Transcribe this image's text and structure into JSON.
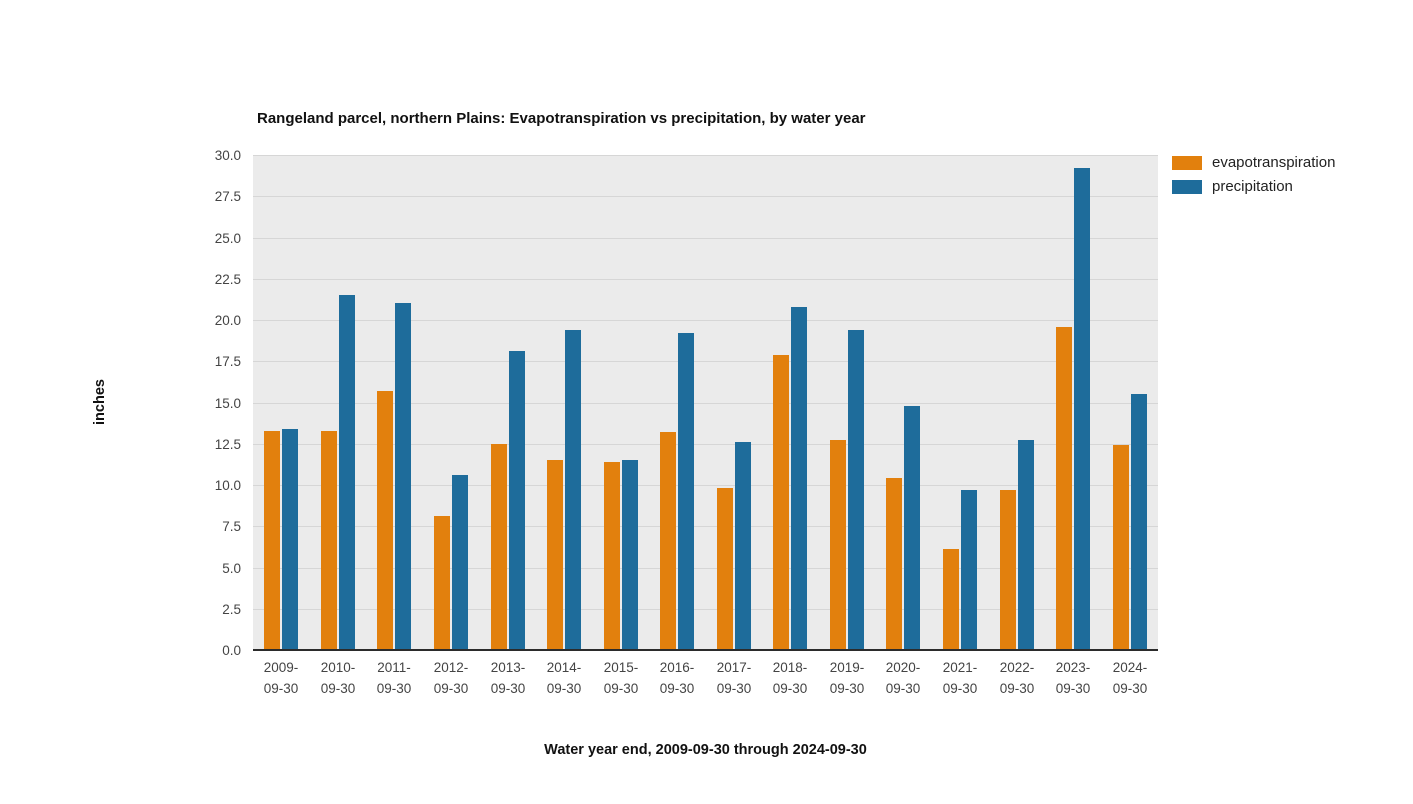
{
  "chart_data": {
    "type": "bar",
    "title": "Rangeland parcel, northern Plains: Evapotranspiration vs precipitation, by water year",
    "xlabel": "Water year end, 2009-09-30 through 2024-09-30",
    "ylabel": "inches",
    "ylim": [
      0,
      30
    ],
    "grid": true,
    "legend_position": "right-top-outside",
    "plot_background": "#EBEBEB",
    "gridline_color": "#D6D6D6",
    "axis_line_color": "#2b2b2b",
    "tick_label_color": "#444444",
    "yticks": [
      "0.0",
      "2.5",
      "5.0",
      "7.5",
      "10.0",
      "12.5",
      "15.0",
      "17.5",
      "20.0",
      "22.5",
      "25.0",
      "27.5",
      "30.0"
    ],
    "categories": [
      "2009-09-30",
      "2010-09-30",
      "2011-09-30",
      "2012-09-30",
      "2013-09-30",
      "2014-09-30",
      "2015-09-30",
      "2016-09-30",
      "2017-09-30",
      "2018-09-30",
      "2019-09-30",
      "2020-09-30",
      "2021-09-30",
      "2022-09-30",
      "2023-09-30",
      "2024-09-30"
    ],
    "series": [
      {
        "name": "evapotranspiration",
        "color": "#E2800D",
        "values": [
          13.3,
          13.3,
          15.7,
          8.1,
          12.5,
          11.5,
          11.4,
          13.2,
          9.8,
          17.9,
          12.7,
          10.4,
          6.1,
          9.7,
          19.6,
          12.4
        ]
      },
      {
        "name": "precipitation",
        "color": "#1E6C9B",
        "values": [
          13.4,
          21.5,
          21.0,
          10.6,
          18.1,
          19.4,
          11.5,
          19.2,
          12.6,
          20.8,
          19.4,
          14.8,
          9.7,
          12.7,
          29.2,
          15.5
        ]
      }
    ]
  }
}
